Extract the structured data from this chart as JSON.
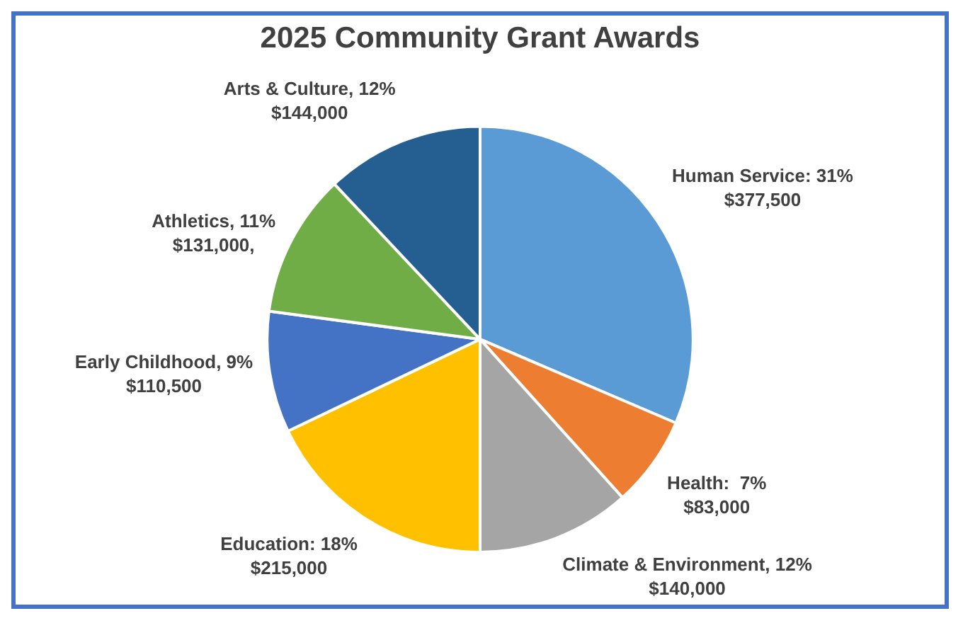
{
  "chart_data": {
    "type": "pie",
    "title": "2025 Community Grant Awards",
    "categories": [
      "Human Service",
      "Health",
      "Climate & Environment",
      "Education",
      "Early Childhood",
      "Athletics",
      "Arts & Culture"
    ],
    "values": [
      377500,
      83000,
      140000,
      215000,
      110500,
      131000,
      144000
    ],
    "colors": [
      "#5b9bd5",
      "#ed7d31",
      "#a5a5a5",
      "#ffc000",
      "#4472c4",
      "#70ad47",
      "#255e91"
    ],
    "value_labels": [
      ": 31%\n$377,500",
      ":  7%\n$83,000",
      ", 12%\n$140,000",
      ": 18%\n$215,000",
      ", 9%\n$110,500",
      ", 11%\n$131,000,",
      ", 12%\n$144,000"
    ],
    "legend": false
  }
}
